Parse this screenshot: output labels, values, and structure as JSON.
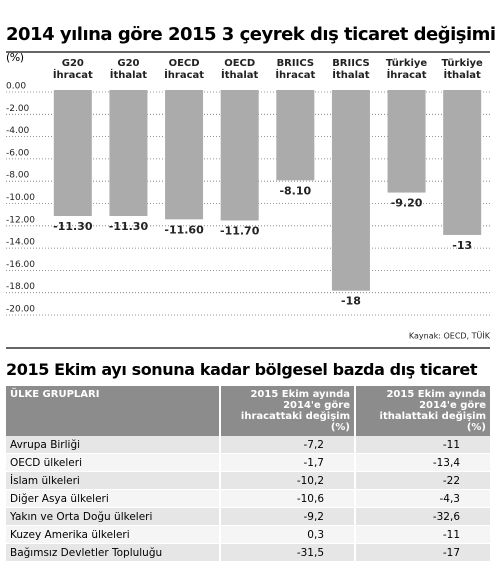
{
  "chart_data": {
    "type": "bar",
    "title": "2014 yılına göre 2015 3 çeyrek dış ticaret değişimi",
    "unit": "(%)",
    "categories": [
      "G20 İhracat",
      "G20 İthalat",
      "OECD İhracat",
      "OECD İthalat",
      "BRIICS İhracat",
      "BRIICS İthalat",
      "Türkiye İhracat",
      "Türkiye İthalat"
    ],
    "values": [
      -11.3,
      -11.3,
      -11.6,
      -11.7,
      -8.1,
      -18,
      -9.2,
      -13
    ],
    "value_labels": [
      "-11.30",
      "-11.30",
      "-11.60",
      "-11.70",
      "-8.10",
      "-18",
      "-9.20",
      "-13"
    ],
    "color": "#ababab",
    "ylim": [
      -20,
      0
    ],
    "yticks": [
      {
        "value": 0,
        "label": "0.00"
      },
      {
        "value": -2,
        "label": "-2.00"
      },
      {
        "value": -4,
        "label": "-4.00"
      },
      {
        "value": -6,
        "label": "-6.00"
      },
      {
        "value": -8,
        "label": "-8.00"
      },
      {
        "value": -10,
        "label": "-10.00"
      },
      {
        "value": -12,
        "label": "-12.00"
      },
      {
        "value": -14,
        "label": "-14.00"
      },
      {
        "value": -16,
        "label": "-16.00"
      },
      {
        "value": -18,
        "label": "-18.00"
      },
      {
        "value": -20,
        "label": "-20.00"
      }
    ],
    "grid": true,
    "source": "Kaynak: OECD, TÜİK"
  },
  "table": {
    "title": "2015 Ekim ayı sonuna kadar bölgesel bazda dış ticaret",
    "headers": [
      "ÜLKE GRUPLARI",
      "2015 Ekim ayında 2014'e göre ihracattaki değişim (%)",
      "2015 Ekim ayında 2014'e göre ithalattaki değişim (%)"
    ],
    "rows": [
      [
        "Avrupa Birliği",
        "-7,2",
        "-11"
      ],
      [
        "OECD ülkeleri",
        "-1,7",
        "-13,4"
      ],
      [
        "İslam ülkeleri",
        "-10,2",
        "-22"
      ],
      [
        "Diğer Asya ülkeleri",
        "-10,6",
        "-4,3"
      ],
      [
        "Yakın ve Orta Doğu ülkeleri",
        "-9,2",
        "-32,6"
      ],
      [
        "Kuzey Amerika ülkeleri",
        "0,3",
        "-11"
      ],
      [
        "Bağımsız Devletler Topluluğu",
        "-31,5",
        "-17"
      ]
    ]
  }
}
